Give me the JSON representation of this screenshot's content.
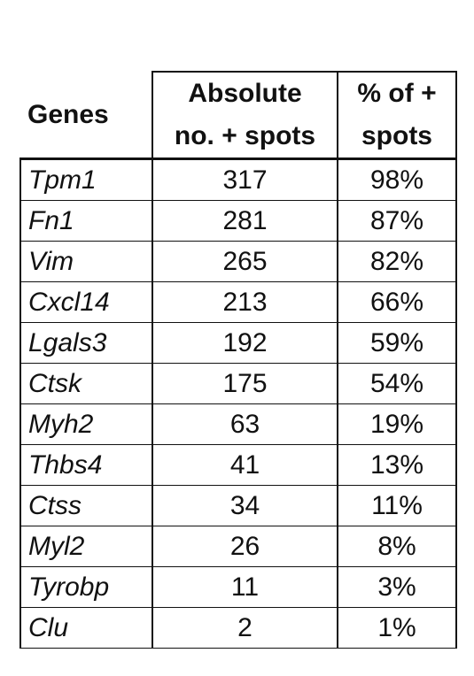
{
  "table": {
    "headers": {
      "genes": "Genes",
      "absolute": [
        "Absolute",
        "no. + spots"
      ],
      "percent": [
        "% of +",
        "spots"
      ]
    },
    "rows": [
      {
        "gene": "Tpm1",
        "absolute": "317",
        "percent": "98%"
      },
      {
        "gene": "Fn1",
        "absolute": "281",
        "percent": "87%"
      },
      {
        "gene": "Vim",
        "absolute": "265",
        "percent": "82%"
      },
      {
        "gene": "Cxcl14",
        "absolute": "213",
        "percent": "66%"
      },
      {
        "gene": "Lgals3",
        "absolute": "192",
        "percent": "59%"
      },
      {
        "gene": "Ctsk",
        "absolute": "175",
        "percent": "54%"
      },
      {
        "gene": "Myh2",
        "absolute": "63",
        "percent": "19%"
      },
      {
        "gene": "Thbs4",
        "absolute": "41",
        "percent": "13%"
      },
      {
        "gene": "Ctss",
        "absolute": "34",
        "percent": "11%"
      },
      {
        "gene": "Myl2",
        "absolute": "26",
        "percent": "8%"
      },
      {
        "gene": "Tyrobp",
        "absolute": "11",
        "percent": "3%"
      },
      {
        "gene": "Clu",
        "absolute": "2",
        "percent": "1%"
      }
    ]
  }
}
